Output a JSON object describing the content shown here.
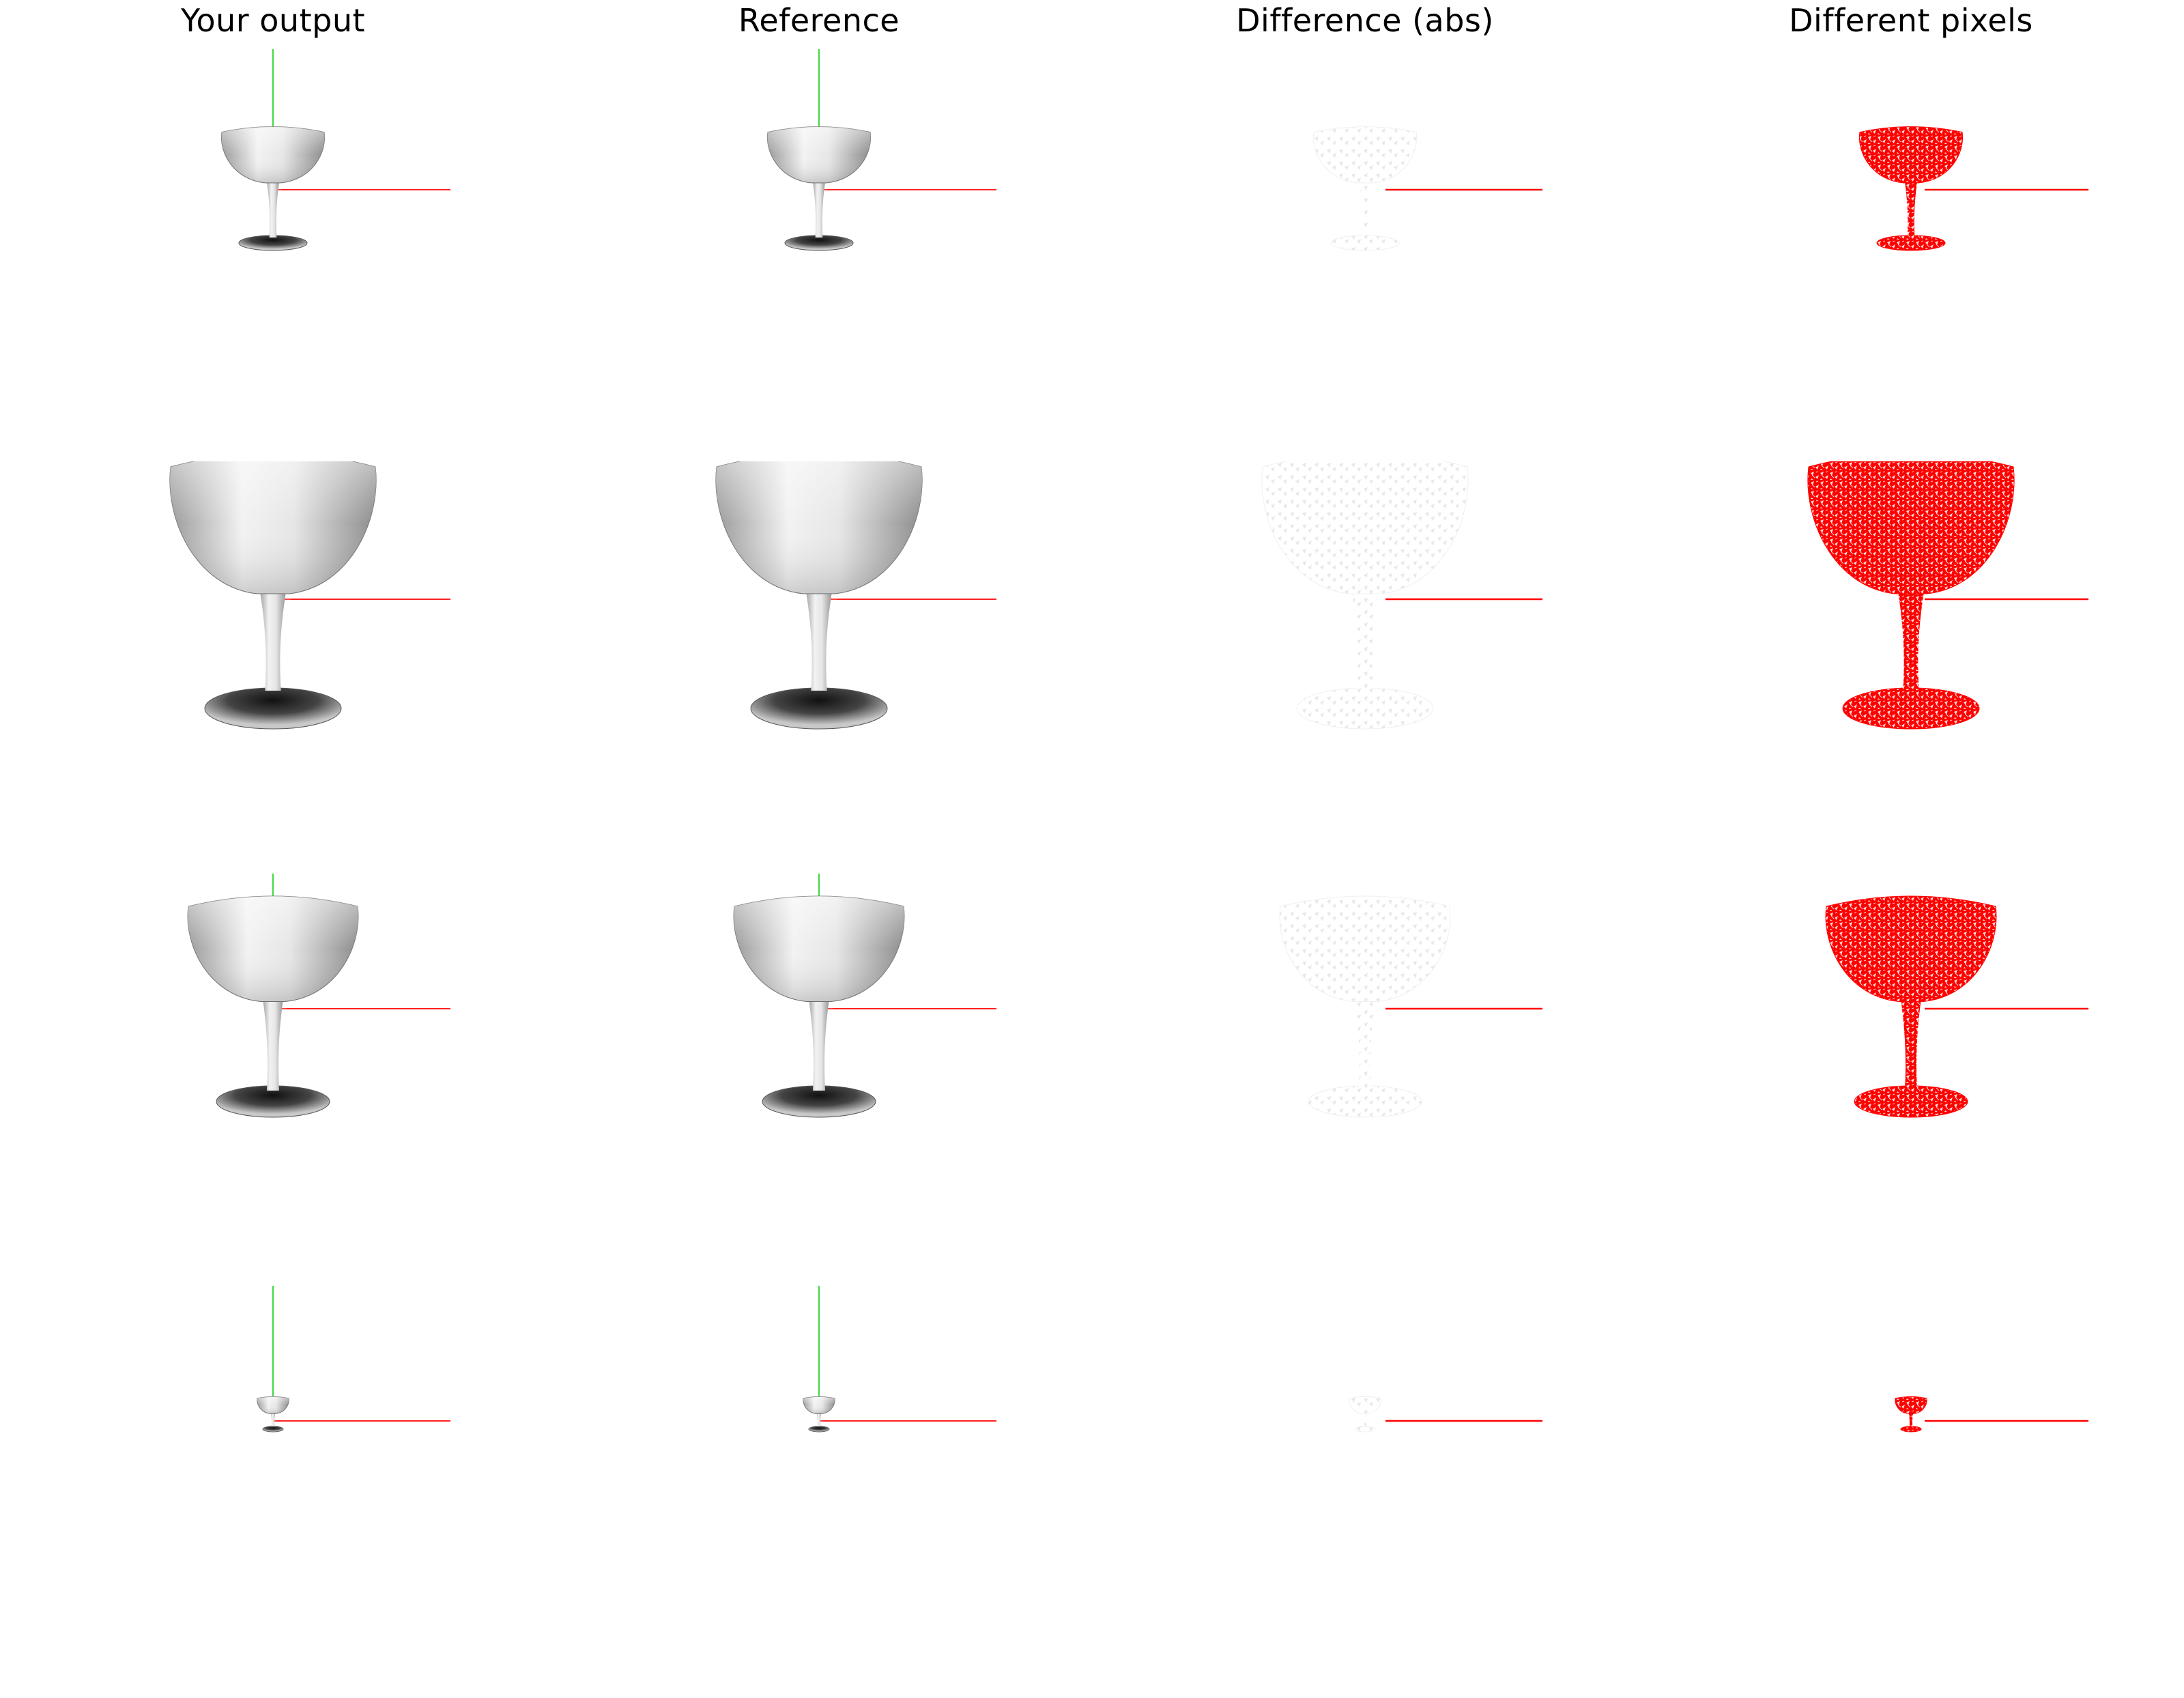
{
  "columns": [
    {
      "title": "Your output"
    },
    {
      "title": "Reference"
    },
    {
      "title": "Difference (abs)"
    },
    {
      "title": "Different pixels"
    }
  ],
  "rows": [
    {
      "view": "small"
    },
    {
      "view": "large"
    },
    {
      "view": "medium"
    },
    {
      "view": "tiny"
    }
  ],
  "colors": {
    "axis_x": "#ff0000",
    "axis_y": "#00cc00",
    "diff_highlight": "#ff0000",
    "shaded_model": "#cfcfcf",
    "background": "#ffffff"
  },
  "icons": {
    "model": "goblet-model-icon",
    "axis_x": "x-axis-line",
    "axis_y": "y-axis-line"
  }
}
